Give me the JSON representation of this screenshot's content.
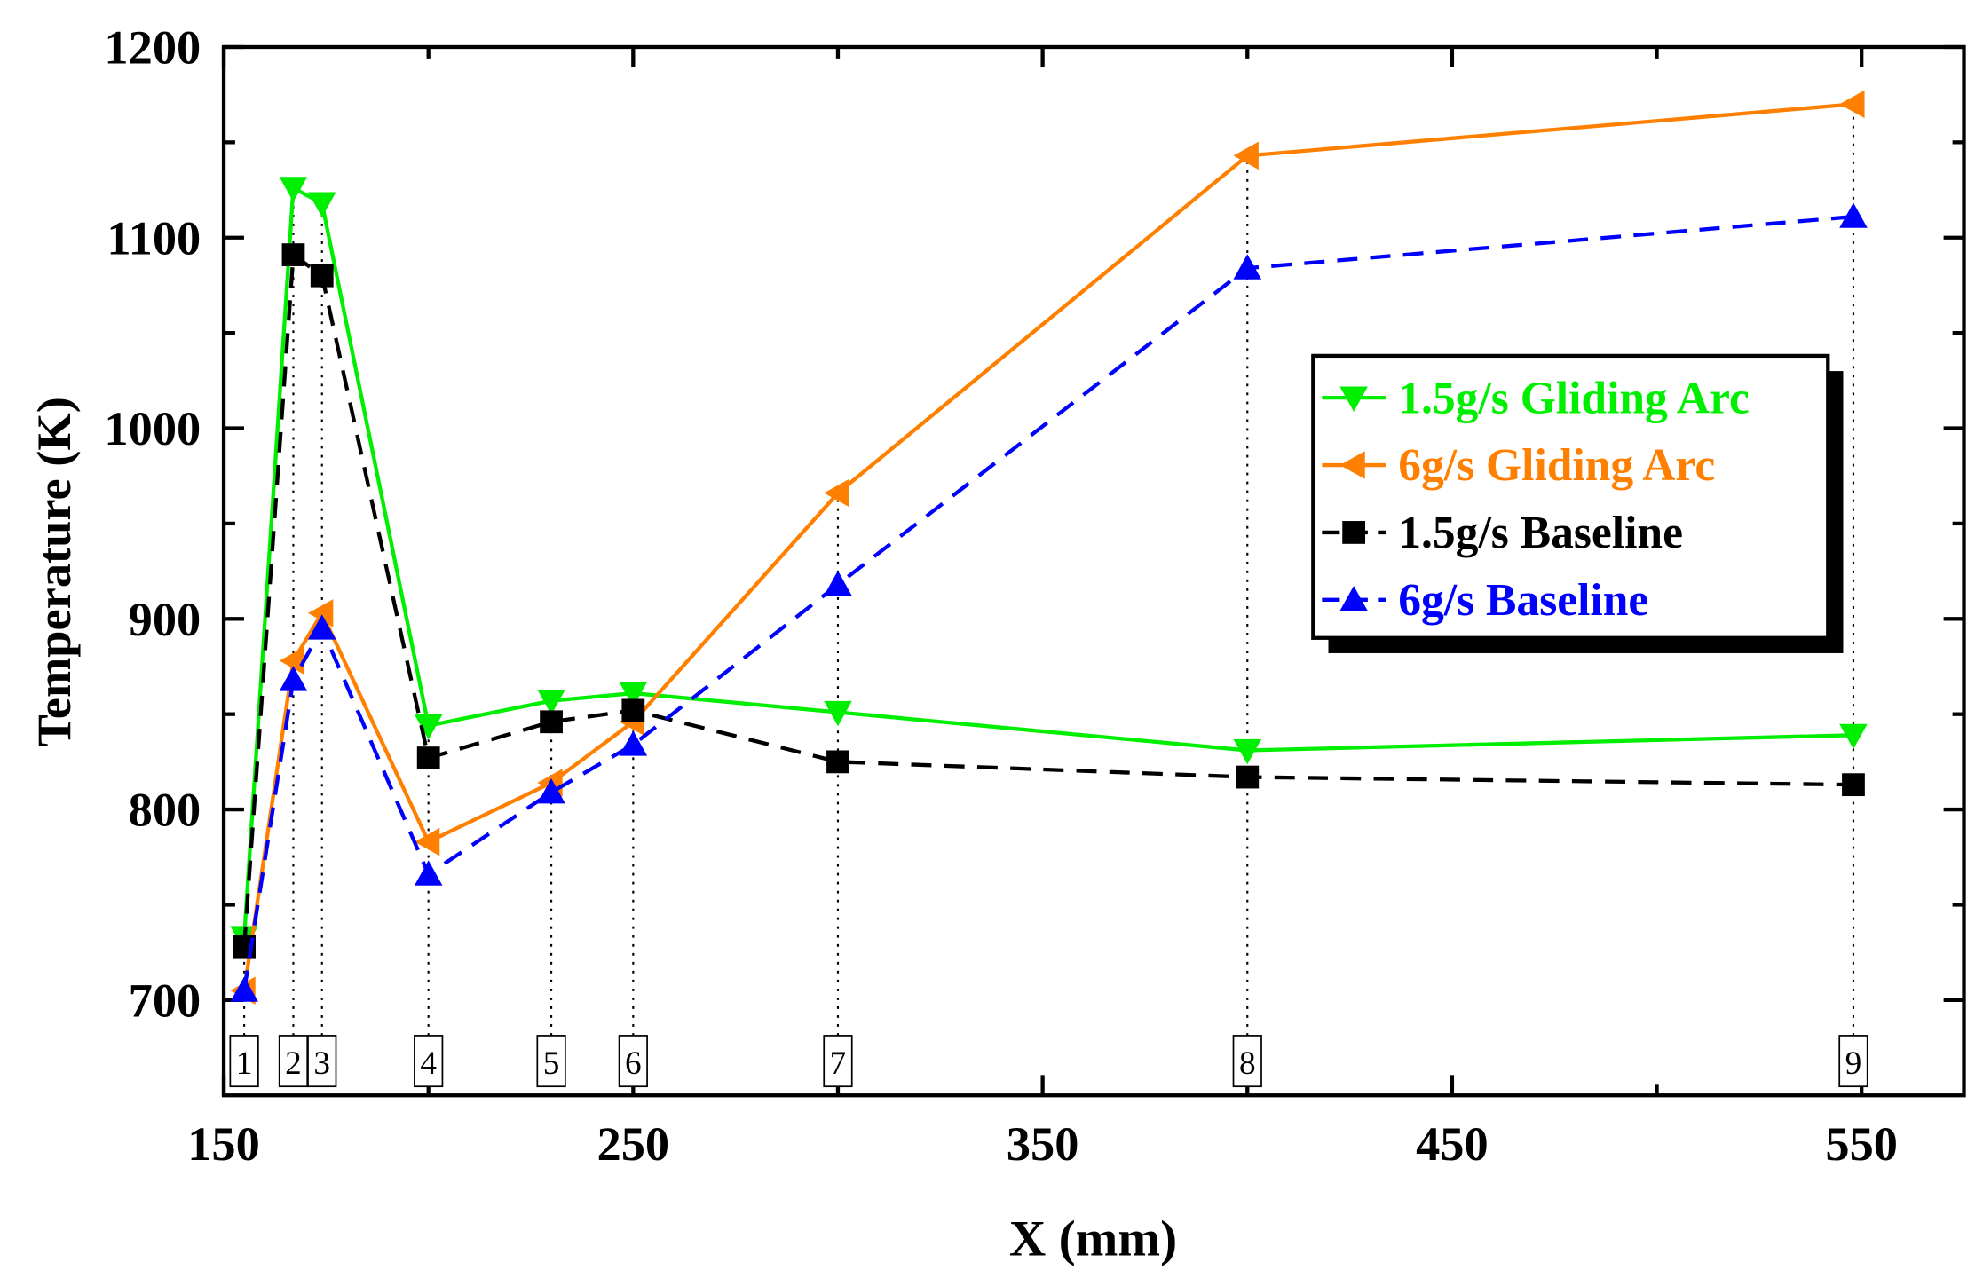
{
  "chart_data": {
    "type": "line",
    "title": "",
    "xlabel": "X (mm)",
    "ylabel": "Temperature (K)",
    "xlim": [
      150,
      575
    ],
    "ylim": [
      650,
      1200
    ],
    "xticks": [
      150,
      250,
      350,
      450,
      550
    ],
    "yticks": [
      700,
      800,
      900,
      1000,
      1100,
      1200
    ],
    "grid": false,
    "legend_position": "center-right",
    "x": [
      155,
      167,
      174,
      200,
      230,
      250,
      300,
      400,
      548
    ],
    "location_labels": [
      "1",
      "2",
      "3",
      "4",
      "5",
      "6",
      "7",
      "8",
      "9"
    ],
    "series": [
      {
        "name": "1.5g/s Gliding Arc",
        "color": "#00ee00",
        "marker": "triangle-down",
        "dash": "solid",
        "values": [
          733,
          1126,
          1118,
          844,
          857,
          861,
          851,
          831,
          839
        ]
      },
      {
        "name": "6g/s Gliding Arc",
        "color": "#ff8000",
        "marker": "triangle-left",
        "dash": "solid",
        "values": [
          705,
          878,
          903,
          783,
          814,
          846,
          966,
          1143,
          1170
        ]
      },
      {
        "name": "1.5g/s Baseline",
        "color": "#000000",
        "marker": "square",
        "dash": "dashed",
        "values": [
          728,
          1091,
          1080,
          827,
          846,
          852,
          825,
          817,
          813
        ]
      },
      {
        "name": "6g/s Baseline",
        "color": "#0000ff",
        "marker": "triangle-up",
        "dash": "dashed",
        "values": [
          705,
          868,
          895,
          766,
          809,
          834,
          918,
          1084,
          1111
        ]
      }
    ]
  }
}
